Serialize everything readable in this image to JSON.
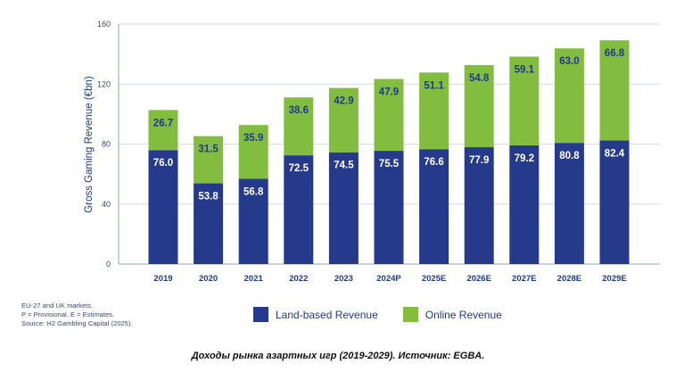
{
  "chart_data": {
    "type": "bar",
    "stacked": true,
    "categories": [
      "2019",
      "2020",
      "2021",
      "2022",
      "2023",
      "2024P",
      "2025E",
      "2026E",
      "2027E",
      "2028E",
      "2029E"
    ],
    "series": [
      {
        "name": "Land-based Revenue",
        "color": "#263a8c",
        "label_color": "#ffffff",
        "values": [
          76.0,
          53.8,
          56.8,
          72.5,
          74.5,
          75.5,
          76.6,
          77.9,
          79.2,
          80.8,
          82.4
        ]
      },
      {
        "name": "Online Revenue",
        "color": "#83bd3f",
        "label_color": "#1f3a8a",
        "values": [
          26.7,
          31.5,
          35.9,
          38.6,
          42.9,
          47.9,
          51.1,
          54.8,
          59.1,
          63.0,
          66.8
        ]
      }
    ],
    "ylabel": "Gross Gaming Revenue (€bn)",
    "xlabel": "",
    "ylim": [
      0,
      160
    ],
    "yticks": [
      0,
      40,
      80,
      120,
      160
    ],
    "grid": true,
    "legend_position": "bottom"
  },
  "notes": [
    "EU-27 and UK markets.",
    "P = Provisional. E = Estimates.",
    "Source: H2 Gambling Capital (2025)."
  ],
  "caption": "Доходы рынка азартных игр (2019-2029). Источник: EGBA."
}
